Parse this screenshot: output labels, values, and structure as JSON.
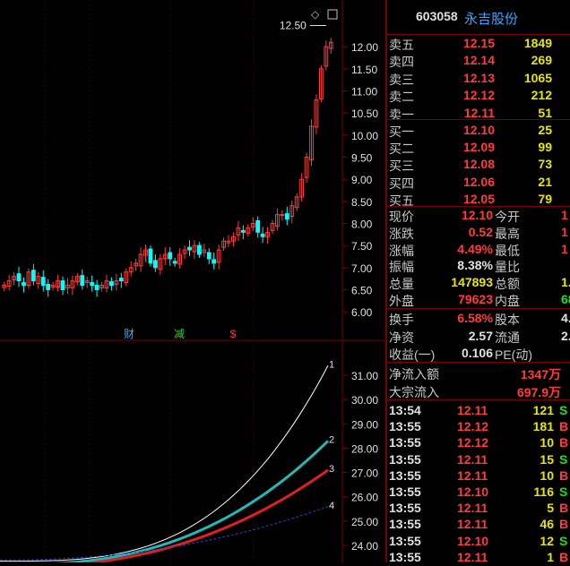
{
  "stock": {
    "code": "603058",
    "name": "永吉股份"
  },
  "order_book": {
    "asks": [
      {
        "label": "卖五",
        "price": "12.15",
        "volume": "1849"
      },
      {
        "label": "卖四",
        "price": "12.14",
        "volume": "269"
      },
      {
        "label": "卖三",
        "price": "12.13",
        "volume": "1065"
      },
      {
        "label": "卖二",
        "price": "12.12",
        "volume": "212"
      },
      {
        "label": "卖一",
        "price": "12.11",
        "volume": "51"
      }
    ],
    "bids": [
      {
        "label": "买一",
        "price": "12.10",
        "volume": "25"
      },
      {
        "label": "买二",
        "price": "12.09",
        "volume": "99"
      },
      {
        "label": "买三",
        "price": "12.08",
        "volume": "73"
      },
      {
        "label": "买四",
        "price": "12.06",
        "volume": "21"
      },
      {
        "label": "买五",
        "price": "12.05",
        "volume": "79"
      }
    ]
  },
  "quote": [
    {
      "l1": "现价",
      "v1": "12.10",
      "l2": "今开",
      "v2": "1"
    },
    {
      "l1": "涨跌",
      "v1": "0.52",
      "l2": "最高",
      "v2": "1"
    },
    {
      "l1": "涨幅",
      "v1": "4.49%",
      "l2": "最低",
      "v2": "1"
    },
    {
      "l1": "振幅",
      "v1": "8.38%",
      "l2": "量比",
      "v2": ""
    },
    {
      "l1": "总量",
      "v1": "147893",
      "l2": "总额",
      "v2": "1."
    },
    {
      "l1": "外盘",
      "v1": "79623",
      "l2": "内盘",
      "v2": "68"
    }
  ],
  "fundamentals": [
    {
      "l1": "换手",
      "v1": "6.58%",
      "l2": "股本",
      "v2": "4."
    },
    {
      "l1": "净资",
      "v1": "2.57",
      "l2": "流通",
      "v2": "2."
    },
    {
      "l1": "收益(一)",
      "v1": "0.106",
      "l2": "PE(动)",
      "v2": ""
    }
  ],
  "flows": [
    {
      "label": "净流入额",
      "value": "1347万"
    },
    {
      "label": "大宗流入",
      "value": "697.9万"
    }
  ],
  "ticks": [
    {
      "time": "13:54",
      "price": "12.11",
      "vol": "121",
      "side": "S"
    },
    {
      "time": "13:55",
      "price": "12.12",
      "vol": "181",
      "side": "B"
    },
    {
      "time": "13:55",
      "price": "12.12",
      "vol": "10",
      "side": "B"
    },
    {
      "time": "13:55",
      "price": "12.11",
      "vol": "15",
      "side": "S"
    },
    {
      "time": "13:55",
      "price": "12.11",
      "vol": "10",
      "side": "B"
    },
    {
      "time": "13:55",
      "price": "12.10",
      "vol": "116",
      "side": "S"
    },
    {
      "time": "13:55",
      "price": "12.11",
      "vol": "5",
      "side": "B"
    },
    {
      "time": "13:55",
      "price": "12.11",
      "vol": "46",
      "side": "B"
    },
    {
      "time": "13:55",
      "price": "12.10",
      "vol": "12",
      "side": "S"
    },
    {
      "time": "13:55",
      "price": "12.11",
      "vol": "1",
      "side": "B"
    }
  ],
  "colors": {
    "up": "#ff3b3b",
    "down": "#00ffff",
    "grid": "#7a0000",
    "buy": "#ff3b3b",
    "sell": "#22dd22"
  },
  "chart_data": [
    {
      "type": "candlestick",
      "title": "",
      "price_high_label": "12.50",
      "y_ticks": [
        "12.00",
        "11.50",
        "11.00",
        "10.50",
        "10.00",
        "9.50",
        "9.00",
        "8.50",
        "8.00",
        "7.50",
        "7.00",
        "6.50",
        "6.00"
      ],
      "ylim": [
        5.8,
        12.55
      ],
      "markers": [
        "财",
        "减",
        "$"
      ],
      "approx_closes": [
        6.6,
        6.7,
        6.8,
        6.7,
        6.6,
        6.9,
        6.7,
        6.8,
        6.6,
        6.5,
        6.6,
        6.7,
        6.5,
        6.6,
        6.7,
        6.8,
        6.6,
        6.7,
        6.6,
        6.5,
        6.6,
        6.7,
        6.6,
        6.7,
        6.7,
        6.9,
        7.0,
        7.1,
        7.3,
        7.4,
        7.1,
        7.0,
        7.2,
        7.3,
        7.2,
        7.1,
        7.3,
        7.4,
        7.4,
        7.5,
        7.3,
        7.4,
        7.2,
        7.1,
        7.4,
        7.6,
        7.6,
        7.7,
        7.9,
        7.8,
        7.9,
        8.0,
        7.8,
        7.7,
        7.8,
        8.0,
        8.2,
        8.2,
        8.1,
        8.4,
        8.6,
        9.0,
        9.5,
        10.2,
        10.8,
        11.5,
        12.0,
        12.1
      ]
    },
    {
      "type": "line",
      "title": "",
      "y_ticks": [
        "31.00",
        "30.00",
        "29.00",
        "28.00",
        "27.00",
        "26.00",
        "25.00",
        "24.00"
      ],
      "ylim": [
        23.3,
        31.7
      ],
      "line_labels": [
        "1",
        "2",
        "3",
        "4"
      ]
    }
  ]
}
